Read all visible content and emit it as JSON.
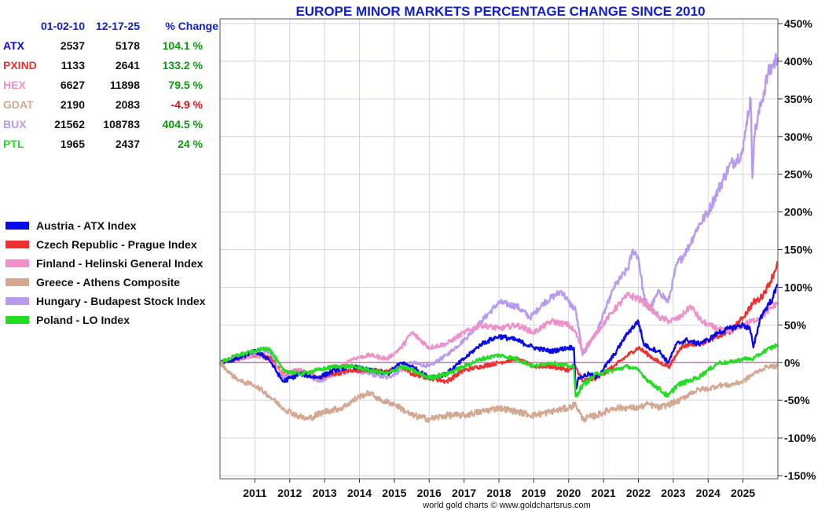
{
  "chart_data": {
    "type": "line",
    "title": "EUROPE MINOR MARKETS PERCENTAGE CHANGE SINCE 2010",
    "credit": "world gold charts © www.goldchartsrus.com",
    "xlabel": "",
    "ylabel": "",
    "xlim": [
      2010.0,
      2026.0
    ],
    "ylim": [
      -150,
      450
    ],
    "x_ticks": [
      "2011",
      "2012",
      "2013",
      "2014",
      "2015",
      "2016",
      "2017",
      "2018",
      "2019",
      "2020",
      "2021",
      "2022",
      "2023",
      "2024",
      "2025"
    ],
    "y_ticks": [
      "450%",
      "400%",
      "350%",
      "300%",
      "250%",
      "200%",
      "150%",
      "100%",
      "50%",
      "0%",
      "-50%",
      "-100%",
      "-150%"
    ],
    "table": {
      "headers": [
        "01-02-10",
        "12-17-25",
        "% Change"
      ],
      "rows": [
        {
          "code": "ATX",
          "start": "2537",
          "end": "5178",
          "change": "104.1 %",
          "color": "#0a0ae8",
          "change_color": "#0a9a0a"
        },
        {
          "code": "PXIND",
          "start": "1133",
          "end": "2641",
          "change": "133.2 %",
          "color": "#f03030",
          "change_color": "#0a9a0a"
        },
        {
          "code": "HEX",
          "start": "6627",
          "end": "11898",
          "change": "79.5 %",
          "color": "#f090c8",
          "change_color": "#0a9a0a"
        },
        {
          "code": "GDAT",
          "start": "2190",
          "end": "2083",
          "change": "-4.9 %",
          "color": "#d4a890",
          "change_color": "#e01010"
        },
        {
          "code": "BUX",
          "start": "21562",
          "end": "108783",
          "change": "404.5 %",
          "color": "#b89aee",
          "change_color": "#0a9a0a"
        },
        {
          "code": "PTL",
          "start": "1965",
          "end": "2437",
          "change": "24 %",
          "color": "#22dd22",
          "change_color": "#0a9a0a"
        }
      ]
    },
    "series": [
      {
        "name": "Hungary - Budapest Stock Index",
        "color": "#b89aee",
        "x": [
          2010.0,
          2010.5,
          2011.0,
          2011.4,
          2011.8,
          2012.3,
          2012.8,
          2013.3,
          2013.8,
          2014.3,
          2014.8,
          2015.2,
          2015.5,
          2016.0,
          2016.5,
          2017.0,
          2017.5,
          2018.0,
          2018.5,
          2018.9,
          2019.3,
          2019.8,
          2020.0,
          2020.2,
          2020.4,
          2020.8,
          2021.3,
          2021.7,
          2021.85,
          2022.0,
          2022.15,
          2022.3,
          2022.6,
          2022.85,
          2023.1,
          2023.4,
          2023.7,
          2024.0,
          2024.3,
          2024.6,
          2025.0,
          2025.1,
          2025.22,
          2025.27,
          2025.32,
          2025.5,
          2025.7,
          2025.85,
          2026.0
        ],
        "y": [
          0,
          5,
          10,
          15,
          -20,
          -10,
          -25,
          -15,
          -10,
          -15,
          -20,
          -10,
          0,
          -5,
          10,
          30,
          55,
          80,
          75,
          60,
          80,
          95,
          80,
          70,
          10,
          40,
          100,
          125,
          150,
          140,
          90,
          70,
          95,
          80,
          130,
          150,
          180,
          200,
          230,
          260,
          280,
          320,
          350,
          245,
          300,
          340,
          380,
          395,
          405
        ]
      },
      {
        "name": "Czech Republic - Prague Index",
        "color": "#f03030",
        "x": [
          2010.0,
          2010.5,
          2011.0,
          2011.4,
          2011.8,
          2012.3,
          2012.8,
          2013.3,
          2013.8,
          2014.3,
          2014.8,
          2015.2,
          2015.5,
          2016.0,
          2016.5,
          2017.0,
          2017.5,
          2018.0,
          2018.5,
          2019.0,
          2019.5,
          2020.0,
          2020.2,
          2020.4,
          2020.8,
          2021.3,
          2021.7,
          2022.0,
          2022.3,
          2022.6,
          2022.9,
          2023.2,
          2023.5,
          2023.8,
          2024.0,
          2024.3,
          2024.6,
          2025.0,
          2025.3,
          2025.5,
          2025.7,
          2025.85,
          2026.0
        ],
        "y": [
          0,
          5,
          10,
          8,
          -15,
          -10,
          -20,
          -15,
          -10,
          -10,
          -12,
          -5,
          -15,
          -20,
          -25,
          -10,
          -5,
          0,
          5,
          -5,
          -5,
          -10,
          -5,
          -25,
          -20,
          -5,
          10,
          20,
          10,
          0,
          -5,
          20,
          25,
          25,
          30,
          35,
          40,
          60,
          80,
          85,
          100,
          115,
          133
        ]
      },
      {
        "name": "Finland - Helinski General Index",
        "color": "#f090c8",
        "x": [
          2010.0,
          2010.5,
          2011.0,
          2011.4,
          2011.8,
          2012.3,
          2012.8,
          2013.3,
          2013.8,
          2014.3,
          2014.8,
          2015.2,
          2015.5,
          2016.0,
          2016.5,
          2017.0,
          2017.5,
          2018.0,
          2018.5,
          2019.0,
          2019.5,
          2020.0,
          2020.2,
          2020.4,
          2020.8,
          2021.3,
          2021.7,
          2022.0,
          2022.3,
          2022.6,
          2022.9,
          2023.2,
          2023.5,
          2023.8,
          2024.0,
          2024.3,
          2024.6,
          2025.0,
          2025.5,
          2026.0
        ],
        "y": [
          0,
          5,
          10,
          5,
          -15,
          -10,
          -20,
          -10,
          5,
          10,
          5,
          20,
          40,
          20,
          25,
          40,
          50,
          45,
          50,
          40,
          55,
          50,
          40,
          15,
          40,
          70,
          90,
          85,
          75,
          60,
          55,
          60,
          75,
          55,
          50,
          45,
          40,
          50,
          60,
          80
        ]
      },
      {
        "name": "Austria - ATX Index",
        "color": "#0a0ae8",
        "x": [
          2010.0,
          2010.5,
          2011.0,
          2011.4,
          2011.8,
          2012.3,
          2012.8,
          2013.3,
          2013.8,
          2014.3,
          2014.8,
          2015.2,
          2015.5,
          2016.0,
          2016.5,
          2017.0,
          2017.5,
          2018.0,
          2018.5,
          2019.0,
          2019.5,
          2020.0,
          2020.15,
          2020.2,
          2020.3,
          2020.6,
          2020.8,
          2021.3,
          2021.7,
          2022.0,
          2022.15,
          2022.3,
          2022.6,
          2022.85,
          2023.1,
          2023.4,
          2023.7,
          2024.0,
          2024.3,
          2024.6,
          2025.0,
          2025.2,
          2025.3,
          2025.5,
          2025.7,
          2025.85,
          2026.0
        ],
        "y": [
          0,
          5,
          15,
          5,
          -25,
          -15,
          -20,
          -10,
          -5,
          -10,
          -15,
          0,
          -5,
          -20,
          -15,
          5,
          25,
          35,
          30,
          20,
          15,
          20,
          20,
          -35,
          -20,
          -15,
          -20,
          10,
          40,
          55,
          25,
          20,
          15,
          0,
          25,
          30,
          25,
          30,
          40,
          45,
          50,
          45,
          20,
          60,
          75,
          85,
          104
        ]
      },
      {
        "name": "Poland - LO Index",
        "color": "#22dd22",
        "x": [
          2010.0,
          2010.5,
          2011.0,
          2011.4,
          2011.8,
          2012.3,
          2012.8,
          2013.3,
          2013.8,
          2014.3,
          2014.8,
          2015.2,
          2015.5,
          2016.0,
          2016.5,
          2017.0,
          2017.5,
          2018.0,
          2018.5,
          2019.0,
          2019.5,
          2020.0,
          2020.15,
          2020.2,
          2020.4,
          2020.8,
          2021.3,
          2021.7,
          2022.0,
          2022.3,
          2022.6,
          2022.85,
          2023.1,
          2023.4,
          2023.7,
          2024.0,
          2024.3,
          2024.6,
          2025.0,
          2025.3,
          2025.6,
          2026.0
        ],
        "y": [
          0,
          10,
          15,
          20,
          -10,
          -15,
          -10,
          -5,
          -5,
          -10,
          -15,
          -5,
          -10,
          -20,
          -15,
          -5,
          5,
          10,
          5,
          -5,
          0,
          -5,
          -5,
          -45,
          -30,
          -15,
          -10,
          -5,
          -10,
          -25,
          -35,
          -45,
          -30,
          -25,
          -20,
          -10,
          0,
          0,
          5,
          5,
          15,
          24
        ]
      },
      {
        "name": "Greece - Athens Composite",
        "color": "#d4a890",
        "x": [
          2010.0,
          2010.3,
          2010.6,
          2011.0,
          2011.3,
          2011.8,
          2012.2,
          2012.5,
          2013.0,
          2013.5,
          2014.0,
          2014.3,
          2014.6,
          2015.0,
          2015.5,
          2016.0,
          2016.5,
          2017.0,
          2017.5,
          2018.0,
          2018.5,
          2019.0,
          2019.5,
          2020.0,
          2020.2,
          2020.4,
          2020.8,
          2021.3,
          2021.7,
          2022.0,
          2022.3,
          2022.6,
          2022.9,
          2023.2,
          2023.5,
          2023.8,
          2024.0,
          2024.3,
          2024.6,
          2025.0,
          2025.3,
          2025.5,
          2025.7,
          2026.0
        ],
        "y": [
          0,
          -15,
          -25,
          -30,
          -40,
          -60,
          -70,
          -75,
          -65,
          -60,
          -45,
          -40,
          -50,
          -55,
          -70,
          -75,
          -70,
          -70,
          -65,
          -60,
          -65,
          -70,
          -65,
          -60,
          -55,
          -75,
          -70,
          -60,
          -60,
          -60,
          -55,
          -60,
          -55,
          -50,
          -40,
          -35,
          -35,
          -30,
          -30,
          -25,
          -15,
          -10,
          -5,
          -5
        ]
      }
    ]
  }
}
